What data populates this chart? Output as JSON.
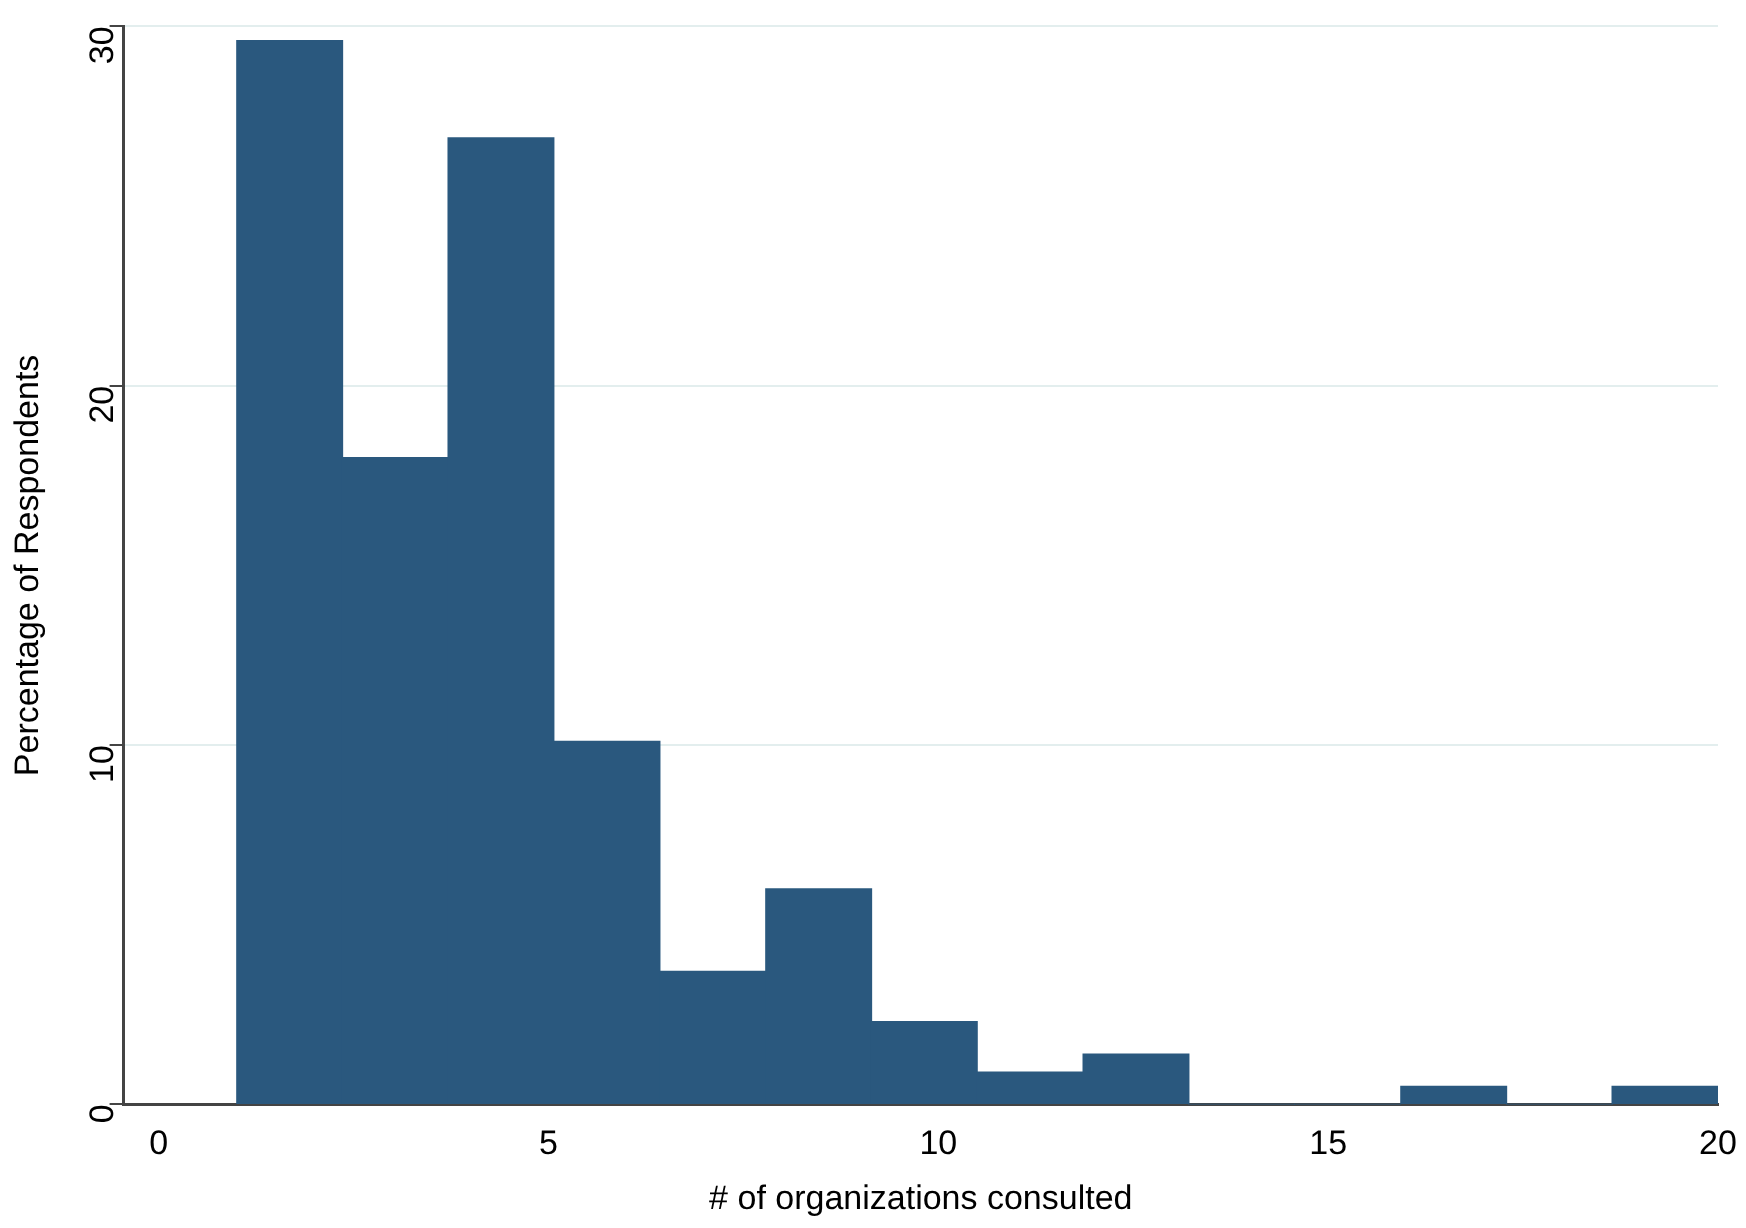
{
  "chart_data": {
    "type": "histogram",
    "xlabel": "# of organizations consulted",
    "ylabel": "Percentage of Respondents",
    "bins": [
      1,
      2.36,
      3.71,
      5.07,
      6.43,
      7.79,
      9.14,
      10.5,
      11.86,
      13.21,
      14.57,
      15.93,
      17.29,
      18.64,
      20
    ],
    "values": [
      29.6,
      18.0,
      26.9,
      10.1,
      3.7,
      6.0,
      2.3,
      0.9,
      1.4,
      0,
      0,
      0.5,
      0,
      0.5
    ],
    "color": "#2a587e",
    "xlim": [
      -0.45,
      20
    ],
    "xticks": [
      0,
      5,
      10,
      15,
      20
    ],
    "ylim": [
      0,
      30
    ],
    "yticks": [
      0,
      10,
      20,
      30
    ],
    "grid": "y",
    "legend": false
  }
}
